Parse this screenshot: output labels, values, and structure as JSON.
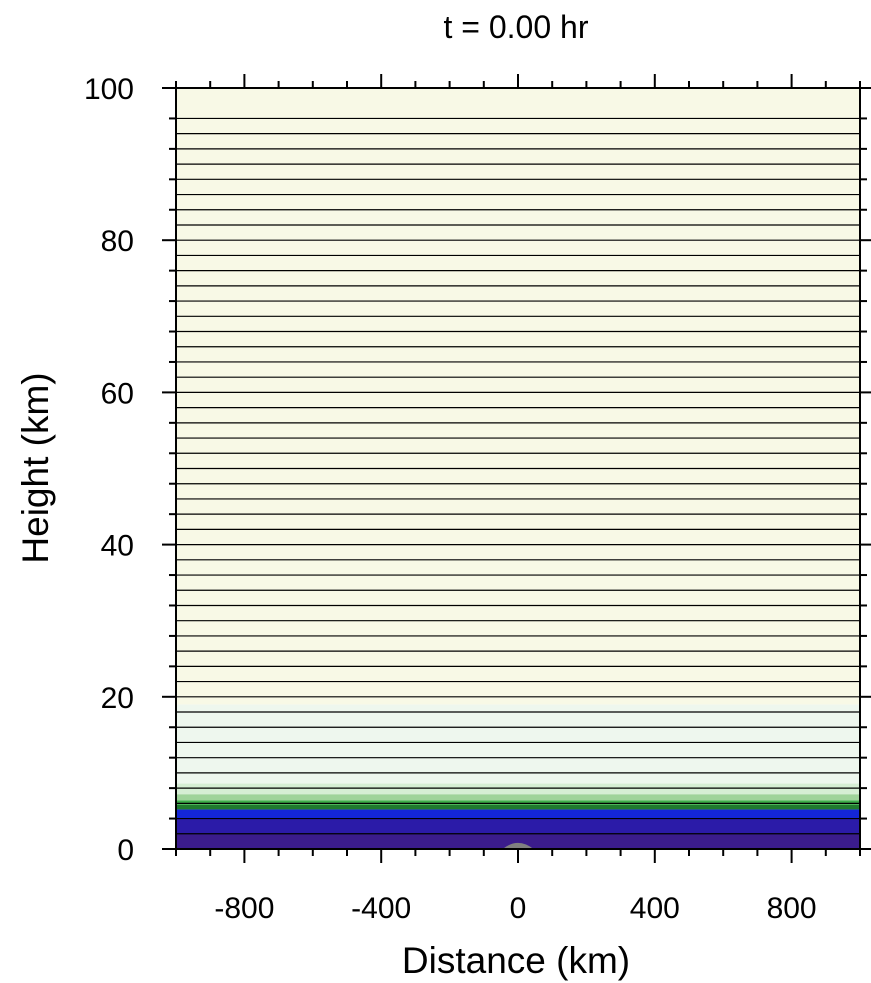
{
  "chart_data": {
    "type": "heatmap",
    "title": "t =  0.00 hr",
    "xlabel": "Distance (km)",
    "ylabel": "Height (km)",
    "xlim": [
      -1000,
      1000
    ],
    "ylim": [
      0,
      100
    ],
    "x_ticks": [
      -800,
      -400,
      0,
      400,
      800
    ],
    "y_ticks": [
      0,
      20,
      40,
      60,
      80,
      100
    ],
    "x_tick_labels": [
      "-800",
      "-400",
      "0",
      "400",
      "800"
    ],
    "y_tick_labels": [
      "0",
      "20",
      "40",
      "60",
      "80",
      "100"
    ],
    "x_minor_step": 100,
    "y_minor_step": 4,
    "fill_bands": [
      {
        "y0": 0,
        "y1": 2,
        "color": "#3b1c8c"
      },
      {
        "y0": 2,
        "y1": 4,
        "color": "#2b1ba8"
      },
      {
        "y0": 4,
        "y1": 5.2,
        "color": "#1426d6"
      },
      {
        "y0": 5.2,
        "y1": 5.8,
        "color": "#1f7a2e"
      },
      {
        "y0": 5.8,
        "y1": 6.4,
        "color": "#3fae4a"
      },
      {
        "y0": 6.4,
        "y1": 7.2,
        "color": "#9fd39a"
      },
      {
        "y0": 7.2,
        "y1": 8.6,
        "color": "#d6eed4"
      },
      {
        "y0": 8.6,
        "y1": 19,
        "color": "#eef7ee"
      },
      {
        "y0": 19,
        "y1": 100,
        "color": "#f8f9e6"
      }
    ],
    "height_lines": [
      2,
      4,
      6,
      8,
      10,
      12,
      14,
      16,
      18,
      20,
      22,
      24,
      26,
      28,
      30,
      32,
      34,
      36,
      38,
      40,
      42,
      44,
      46,
      48,
      50,
      52,
      54,
      56,
      58,
      60,
      62,
      64,
      66,
      68,
      70,
      72,
      74,
      76,
      78,
      80,
      82,
      84,
      86,
      88,
      90,
      92,
      94,
      96
    ],
    "line_color": "#000000",
    "terrain": {
      "center_km": 0,
      "half_width_km": 45,
      "peak_height_km": 0.8,
      "color": "#808080"
    }
  }
}
